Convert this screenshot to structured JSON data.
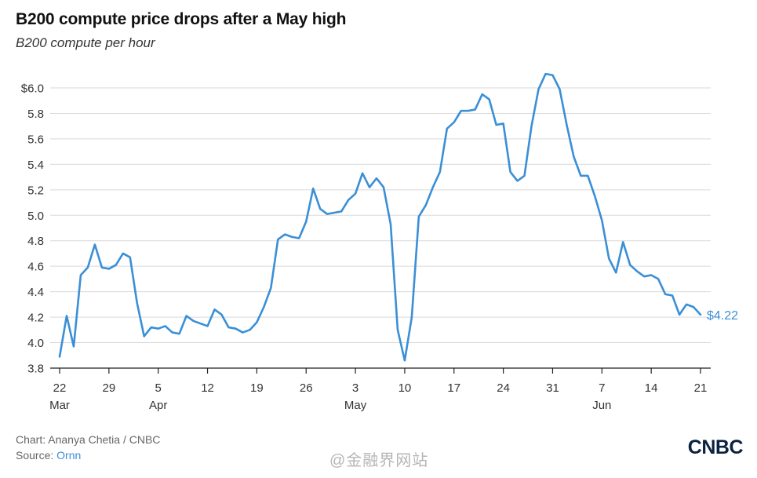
{
  "title": "B200 compute price drops after a May high",
  "subtitle": "B200 compute per hour",
  "credit": "Chart: Ananya Chetia / CNBC",
  "source_label": "Source:",
  "source_name": "Ornn",
  "logo": "CNBC",
  "watermark": "@金融界网站",
  "colors": {
    "line": "#3a8fd6",
    "grid": "#d9d9d9",
    "axis": "#222222",
    "logo": "#0a2240"
  },
  "chart_data": {
    "type": "line",
    "title": "B200 compute price drops after a May high",
    "ylabel": "B200 compute per hour",
    "ylim": [
      3.8,
      6.1
    ],
    "yticks": [
      {
        "value": 3.8,
        "label": "3.8"
      },
      {
        "value": 4.0,
        "label": "4.0"
      },
      {
        "value": 4.2,
        "label": "4.2"
      },
      {
        "value": 4.4,
        "label": "4.4"
      },
      {
        "value": 4.6,
        "label": "4.6"
      },
      {
        "value": 4.8,
        "label": "4.8"
      },
      {
        "value": 5.0,
        "label": "5.0"
      },
      {
        "value": 5.2,
        "label": "5.2"
      },
      {
        "value": 5.4,
        "label": "5.4"
      },
      {
        "value": 5.6,
        "label": "5.6"
      },
      {
        "value": 5.8,
        "label": "5.8"
      },
      {
        "value": 6.0,
        "label": "$6.0"
      }
    ],
    "xticks": [
      {
        "date": "2025-03-22",
        "label": "22",
        "month": "Mar"
      },
      {
        "date": "2025-03-29",
        "label": "29",
        "month": ""
      },
      {
        "date": "2025-04-05",
        "label": "5",
        "month": "Apr"
      },
      {
        "date": "2025-04-12",
        "label": "12",
        "month": ""
      },
      {
        "date": "2025-04-19",
        "label": "19",
        "month": ""
      },
      {
        "date": "2025-04-26",
        "label": "26",
        "month": ""
      },
      {
        "date": "2025-05-03",
        "label": "3",
        "month": "May"
      },
      {
        "date": "2025-05-10",
        "label": "10",
        "month": ""
      },
      {
        "date": "2025-05-17",
        "label": "17",
        "month": ""
      },
      {
        "date": "2025-05-24",
        "label": "24",
        "month": ""
      },
      {
        "date": "2025-05-31",
        "label": "31",
        "month": ""
      },
      {
        "date": "2025-06-07",
        "label": "7",
        "month": "Jun"
      },
      {
        "date": "2025-06-14",
        "label": "14",
        "month": ""
      },
      {
        "date": "2025-06-21",
        "label": "21",
        "month": ""
      }
    ],
    "grid": true,
    "end_label": "$4.22",
    "series": [
      {
        "points": [
          [
            "2025-03-22",
            3.89
          ],
          [
            "2025-03-23",
            4.21
          ],
          [
            "2025-03-24",
            3.97
          ],
          [
            "2025-03-25",
            4.53
          ],
          [
            "2025-03-26",
            4.59
          ],
          [
            "2025-03-27",
            4.77
          ],
          [
            "2025-03-28",
            4.59
          ],
          [
            "2025-03-29",
            4.58
          ],
          [
            "2025-03-30",
            4.61
          ],
          [
            "2025-03-31",
            4.7
          ],
          [
            "2025-04-01",
            4.67
          ],
          [
            "2025-04-02",
            4.31
          ],
          [
            "2025-04-03",
            4.05
          ],
          [
            "2025-04-04",
            4.12
          ],
          [
            "2025-04-05",
            4.11
          ],
          [
            "2025-04-06",
            4.13
          ],
          [
            "2025-04-07",
            4.08
          ],
          [
            "2025-04-08",
            4.07
          ],
          [
            "2025-04-09",
            4.21
          ],
          [
            "2025-04-10",
            4.17
          ],
          [
            "2025-04-11",
            4.15
          ],
          [
            "2025-04-12",
            4.13
          ],
          [
            "2025-04-13",
            4.26
          ],
          [
            "2025-04-14",
            4.22
          ],
          [
            "2025-04-15",
            4.12
          ],
          [
            "2025-04-16",
            4.11
          ],
          [
            "2025-04-17",
            4.08
          ],
          [
            "2025-04-18",
            4.1
          ],
          [
            "2025-04-19",
            4.16
          ],
          [
            "2025-04-20",
            4.28
          ],
          [
            "2025-04-21",
            4.43
          ],
          [
            "2025-04-22",
            4.81
          ],
          [
            "2025-04-23",
            4.85
          ],
          [
            "2025-04-24",
            4.83
          ],
          [
            "2025-04-25",
            4.82
          ],
          [
            "2025-04-26",
            4.95
          ],
          [
            "2025-04-27",
            5.21
          ],
          [
            "2025-04-28",
            5.05
          ],
          [
            "2025-04-29",
            5.01
          ],
          [
            "2025-04-30",
            5.02
          ],
          [
            "2025-05-01",
            5.03
          ],
          [
            "2025-05-02",
            5.12
          ],
          [
            "2025-05-03",
            5.17
          ],
          [
            "2025-05-04",
            5.33
          ],
          [
            "2025-05-05",
            5.22
          ],
          [
            "2025-05-06",
            5.29
          ],
          [
            "2025-05-07",
            5.22
          ],
          [
            "2025-05-08",
            4.93
          ],
          [
            "2025-05-09",
            4.1
          ],
          [
            "2025-05-10",
            3.86
          ],
          [
            "2025-05-11",
            4.2
          ],
          [
            "2025-05-12",
            4.99
          ],
          [
            "2025-05-13",
            5.08
          ],
          [
            "2025-05-14",
            5.22
          ],
          [
            "2025-05-15",
            5.34
          ],
          [
            "2025-05-16",
            5.68
          ],
          [
            "2025-05-17",
            5.73
          ],
          [
            "2025-05-18",
            5.82
          ],
          [
            "2025-05-19",
            5.82
          ],
          [
            "2025-05-20",
            5.83
          ],
          [
            "2025-05-21",
            5.95
          ],
          [
            "2025-05-22",
            5.91
          ],
          [
            "2025-05-23",
            5.71
          ],
          [
            "2025-05-24",
            5.72
          ],
          [
            "2025-05-25",
            5.34
          ],
          [
            "2025-05-26",
            5.27
          ],
          [
            "2025-05-27",
            5.31
          ],
          [
            "2025-05-28",
            5.7
          ],
          [
            "2025-05-29",
            5.99
          ],
          [
            "2025-05-30",
            6.11
          ],
          [
            "2025-05-31",
            6.1
          ],
          [
            "2025-06-01",
            5.99
          ],
          [
            "2025-06-02",
            5.71
          ],
          [
            "2025-06-03",
            5.46
          ],
          [
            "2025-06-04",
            5.31
          ],
          [
            "2025-06-05",
            5.31
          ],
          [
            "2025-06-06",
            5.15
          ],
          [
            "2025-06-07",
            4.96
          ],
          [
            "2025-06-08",
            4.66
          ],
          [
            "2025-06-09",
            4.55
          ],
          [
            "2025-06-10",
            4.79
          ],
          [
            "2025-06-11",
            4.61
          ],
          [
            "2025-06-12",
            4.56
          ],
          [
            "2025-06-13",
            4.52
          ],
          [
            "2025-06-14",
            4.53
          ],
          [
            "2025-06-15",
            4.5
          ],
          [
            "2025-06-16",
            4.38
          ],
          [
            "2025-06-17",
            4.37
          ],
          [
            "2025-06-18",
            4.22
          ],
          [
            "2025-06-19",
            4.3
          ],
          [
            "2025-06-20",
            4.28
          ],
          [
            "2025-06-21",
            4.22
          ]
        ]
      }
    ]
  }
}
